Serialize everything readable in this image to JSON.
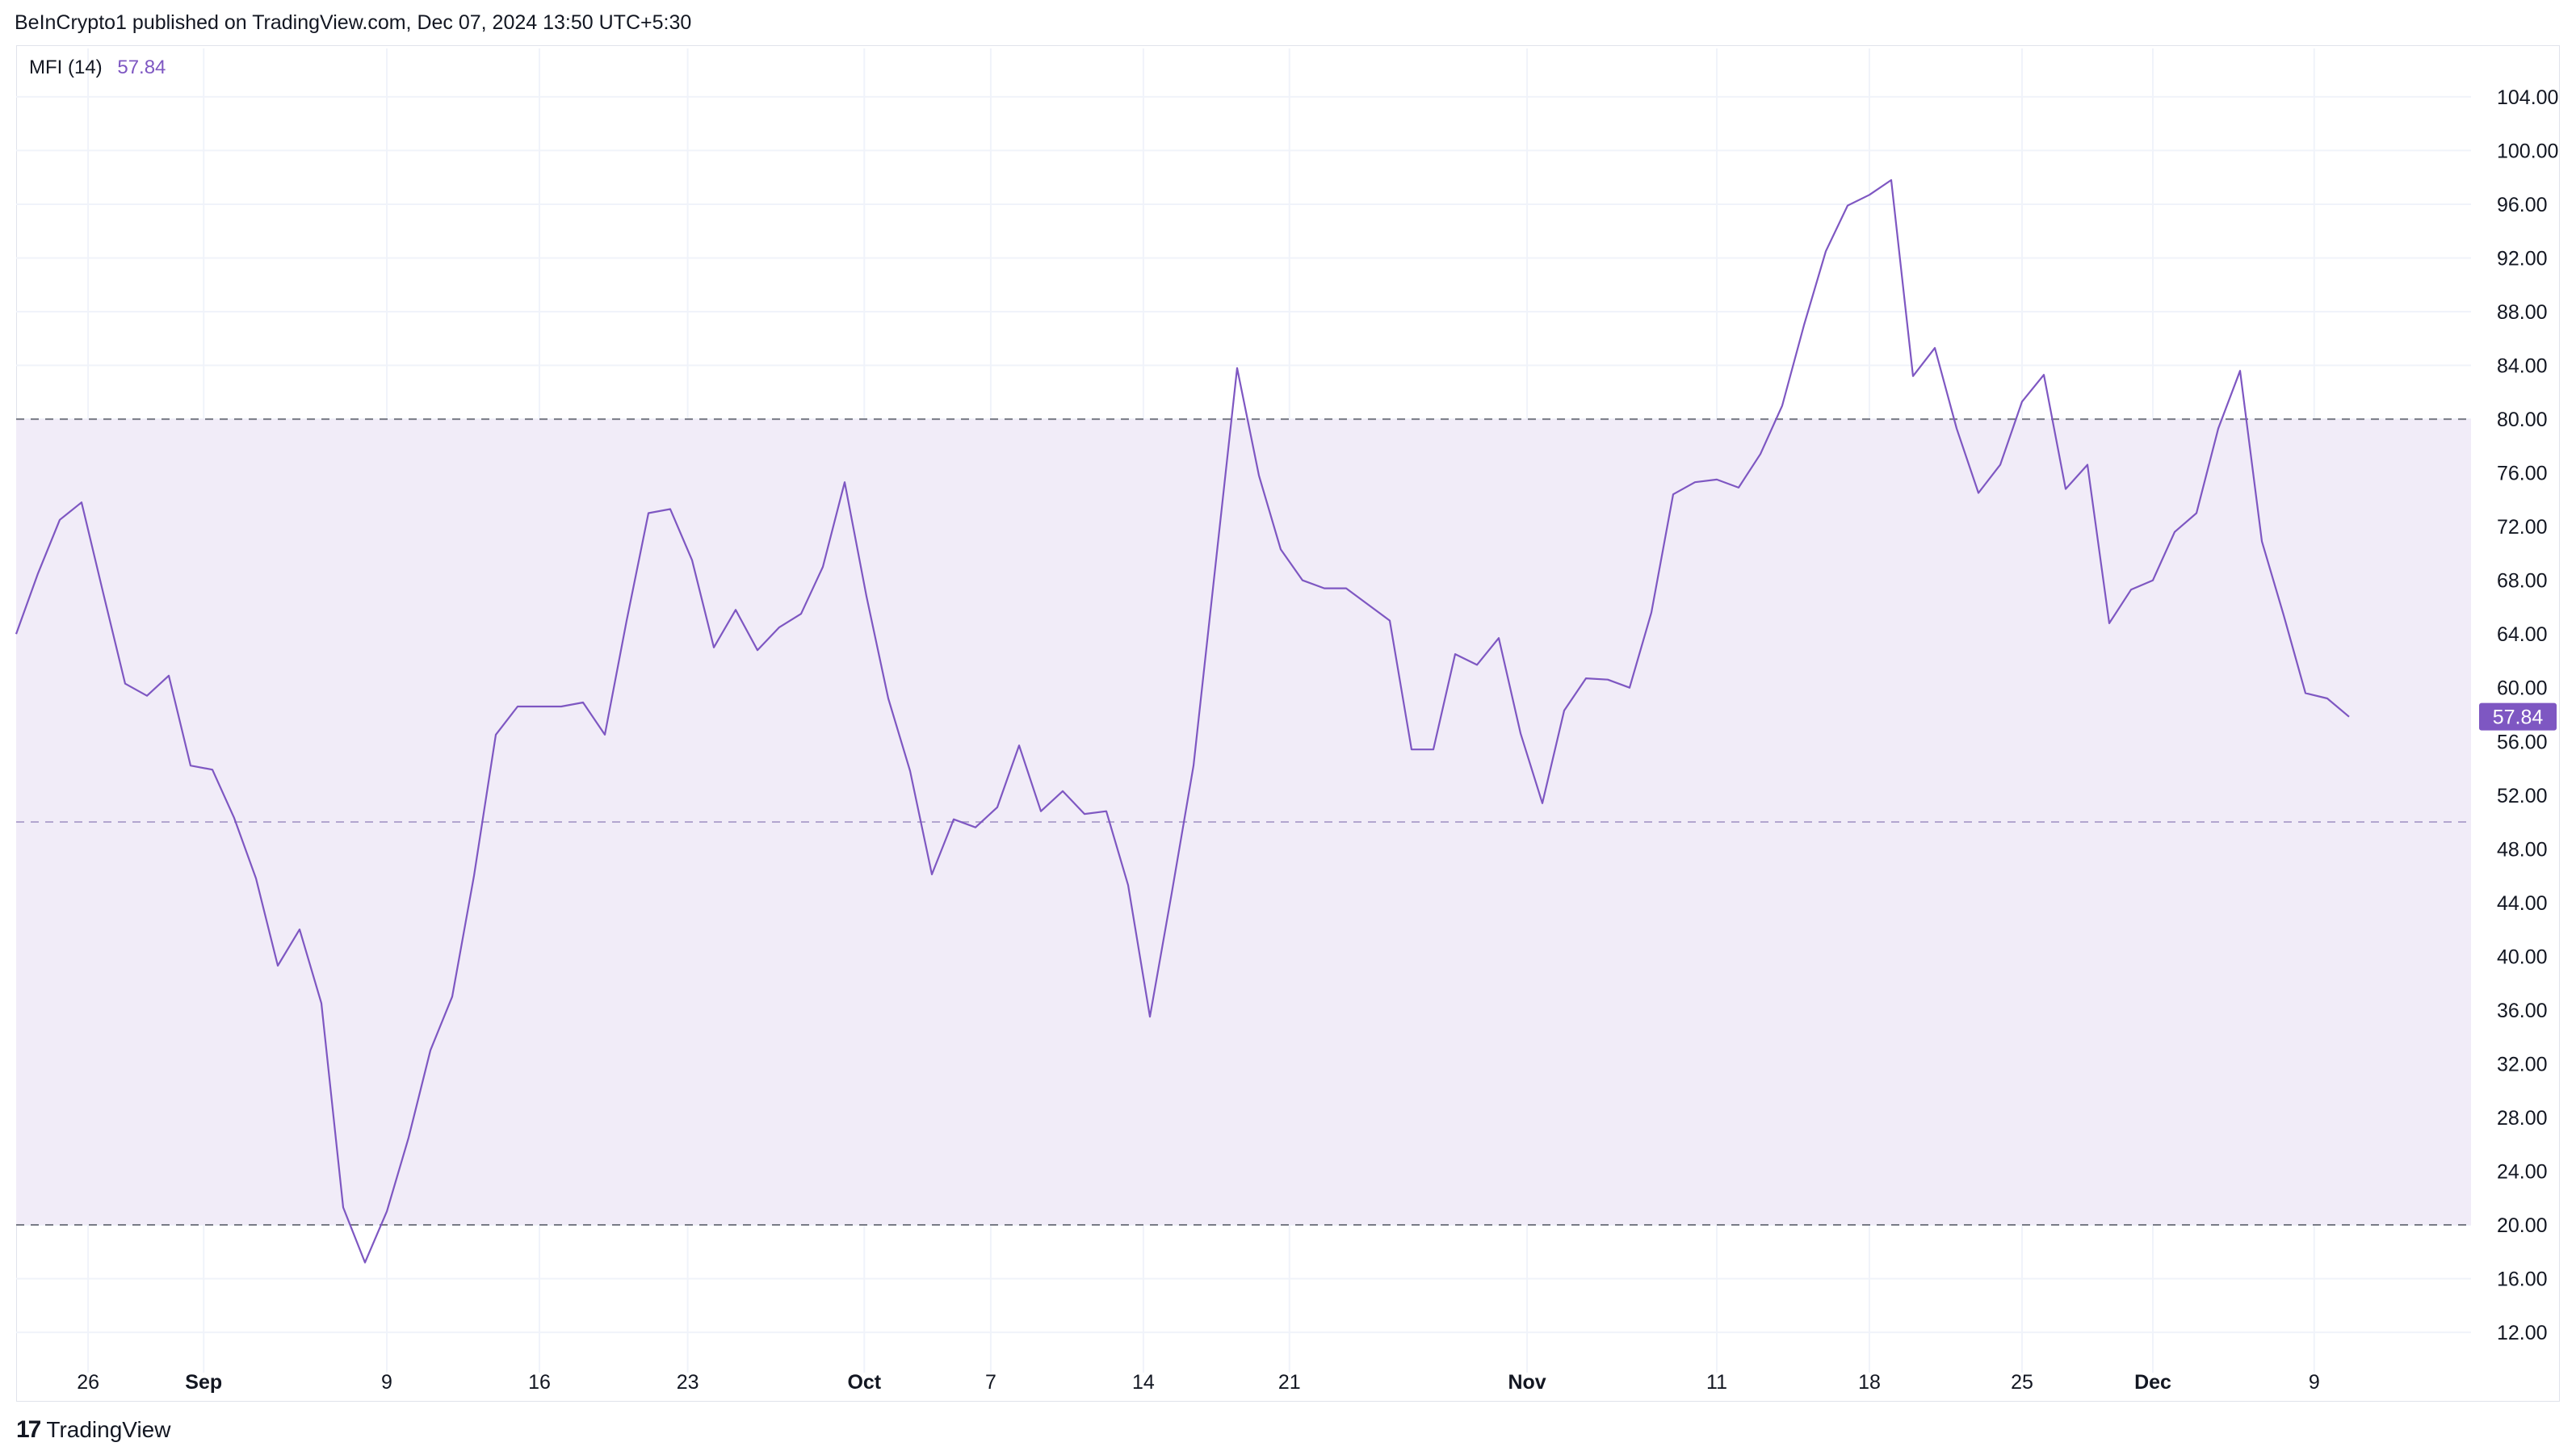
{
  "header": {
    "publisher_line": "BeInCrypto1 published on TradingView.com, Dec 07, 2024 13:50 UTC+5:30"
  },
  "legend": {
    "name": "MFI (14)",
    "value": "57.84"
  },
  "footer": {
    "brand": "TradingView",
    "logo_icon": "tradingview-logo-icon"
  },
  "colors": {
    "line": "#7e57c2",
    "band_fill": "#f1ecf8",
    "grid": "#f0f3fa",
    "dashed": "#787b86",
    "last_value_bg": "#7e57c2"
  },
  "chart_data": {
    "type": "line",
    "title": "",
    "series": [
      {
        "name": "MFI (14)",
        "values": [
          64.0,
          68.5,
          72.5,
          73.8,
          67.0,
          60.3,
          59.4,
          60.9,
          54.2,
          53.9,
          50.3,
          45.8,
          39.3,
          42.0,
          36.5,
          21.3,
          17.2,
          21.0,
          26.5,
          33.0,
          37.0,
          46.0,
          56.5,
          58.6,
          58.6,
          58.6,
          58.9,
          56.5,
          65.0,
          73.0,
          73.3,
          69.5,
          63.0,
          65.8,
          62.8,
          64.5,
          65.5,
          69.0,
          75.3,
          66.8,
          59.2,
          53.8,
          46.1,
          50.2,
          49.6,
          51.1,
          55.7,
          50.8,
          52.3,
          50.6,
          50.8,
          45.3,
          35.5,
          44.7,
          54.2,
          69.0,
          83.8,
          75.8,
          70.3,
          68.0,
          67.4,
          67.4,
          66.2,
          65.0,
          55.4,
          55.4,
          62.5,
          61.7,
          63.7,
          56.6,
          51.4,
          58.3,
          60.7,
          60.6,
          60.0,
          65.6,
          74.4,
          75.3,
          75.5,
          74.9,
          77.4,
          81.0,
          87.0,
          92.5,
          95.9,
          96.7,
          97.8,
          83.2,
          85.3,
          79.3,
          74.5,
          76.6,
          81.3,
          83.3,
          74.8,
          76.6,
          64.8,
          67.3,
          68.0,
          71.6,
          73.0,
          79.3,
          83.6,
          70.9,
          65.4,
          59.6,
          59.2,
          57.84
        ]
      }
    ],
    "x_tick_labels": [
      "26",
      "Sep",
      "9",
      "16",
      "23",
      "Oct",
      "7",
      "14",
      "21",
      "Nov",
      "11",
      "18",
      "25",
      "Dec",
      "9"
    ],
    "y_tick_labels": [
      "12.00",
      "16.00",
      "20.00",
      "24.00",
      "28.00",
      "32.00",
      "36.00",
      "40.00",
      "44.00",
      "48.00",
      "52.00",
      "56.00",
      "60.00",
      "64.00",
      "68.00",
      "72.00",
      "76.00",
      "80.00",
      "84.00",
      "88.00",
      "92.00",
      "96.00",
      "100.00",
      "104.00"
    ],
    "ylim": [
      9.0,
      107.6
    ],
    "bands": {
      "upper": 80,
      "middle": 50,
      "lower": 20
    },
    "last_value": "57.84",
    "grid": true,
    "xlabel": "",
    "ylabel": ""
  }
}
